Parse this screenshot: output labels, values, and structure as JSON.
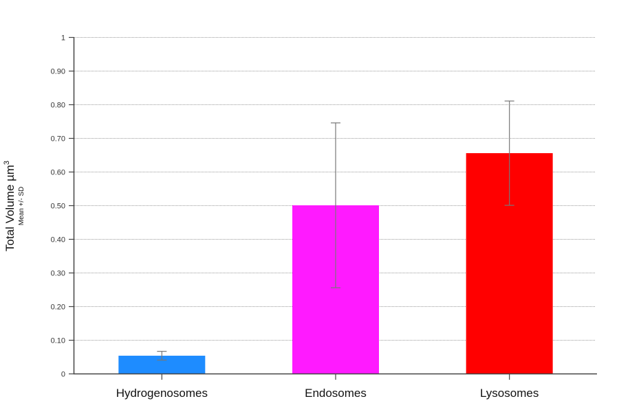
{
  "chart_data": {
    "type": "bar",
    "title": "",
    "xlabel": "",
    "ylabel": "Total Volume µm³",
    "ylabel_sub": "Mean +/- SD",
    "ylim": [
      0,
      1
    ],
    "yticks": [
      0,
      0.1,
      0.2,
      0.3,
      0.4,
      0.5,
      0.6,
      0.7,
      0.8,
      0.9,
      1
    ],
    "ytick_labels": [
      "0",
      "0.10",
      "0.20",
      "0.30",
      "0.40",
      "0.50",
      "0.60",
      "0.70",
      "0.80",
      "0.90",
      "1"
    ],
    "grid": true,
    "legend": null,
    "categories": [
      "Hydrogenosomes",
      "Endosomes",
      "Lysosomes"
    ],
    "values": [
      0.053,
      0.5,
      0.655
    ],
    "error_sd": [
      0.013,
      0.245,
      0.155
    ],
    "colors": [
      "#1e8cff",
      "#ff1aff",
      "#ff0000"
    ]
  },
  "axis": {
    "ylabel_main": "Total Volume µm",
    "ylabel_sup": "3",
    "ylabel_sub": "Mean +/- SD"
  }
}
